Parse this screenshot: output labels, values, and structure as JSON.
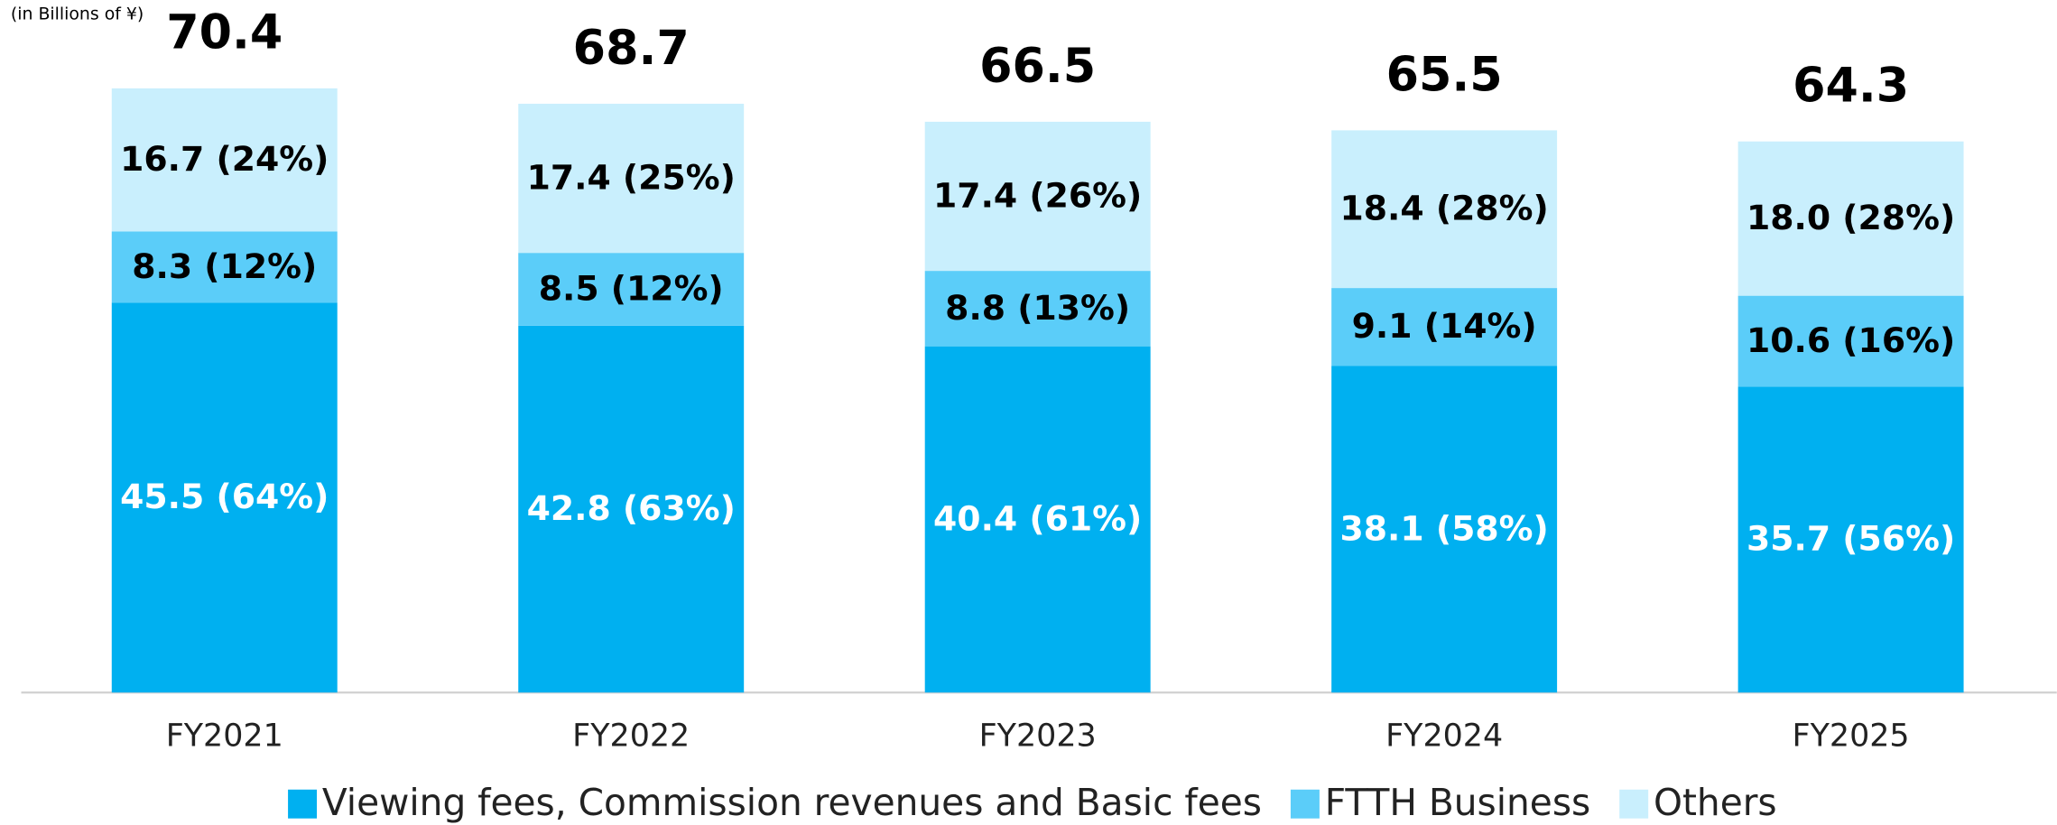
{
  "chart_data": {
    "type": "stacked_bar",
    "unit_label": "(in Billions of ¥)",
    "categories": [
      "FY2021",
      "FY2022",
      "FY2023",
      "FY2024",
      "FY2025"
    ],
    "series": [
      {
        "name": "Viewing fees, Commission revenues and Basic fees",
        "color": "#00b0f0",
        "label_color": "#ffffff",
        "values": [
          45.5,
          42.8,
          40.4,
          38.1,
          35.7
        ],
        "value_labels": [
          "45.5 (64%)",
          "42.8 (63%)",
          "40.4 (61%)",
          "38.1 (58%)",
          "35.7 (56%)"
        ]
      },
      {
        "name": "FTTH Business",
        "color": "#5bcdf9",
        "label_color": "#000000",
        "values": [
          8.3,
          8.5,
          8.8,
          9.1,
          10.6
        ],
        "value_labels": [
          "8.3 (12%)",
          "8.5 (12%)",
          "8.8 (13%)",
          "9.1 (14%)",
          "10.6 (16%)"
        ]
      },
      {
        "name": "Others",
        "color": "#c9effd",
        "label_color": "#000000",
        "values": [
          16.7,
          17.4,
          17.4,
          18.4,
          18.0
        ],
        "value_labels": [
          "16.7 (24%)",
          "17.4 (25%)",
          "17.4 (26%)",
          "18.4 (28%)",
          "18.0 (28%)"
        ]
      }
    ],
    "totals": [
      70.4,
      68.7,
      66.5,
      65.5,
      64.3
    ],
    "legend": "bottom"
  }
}
